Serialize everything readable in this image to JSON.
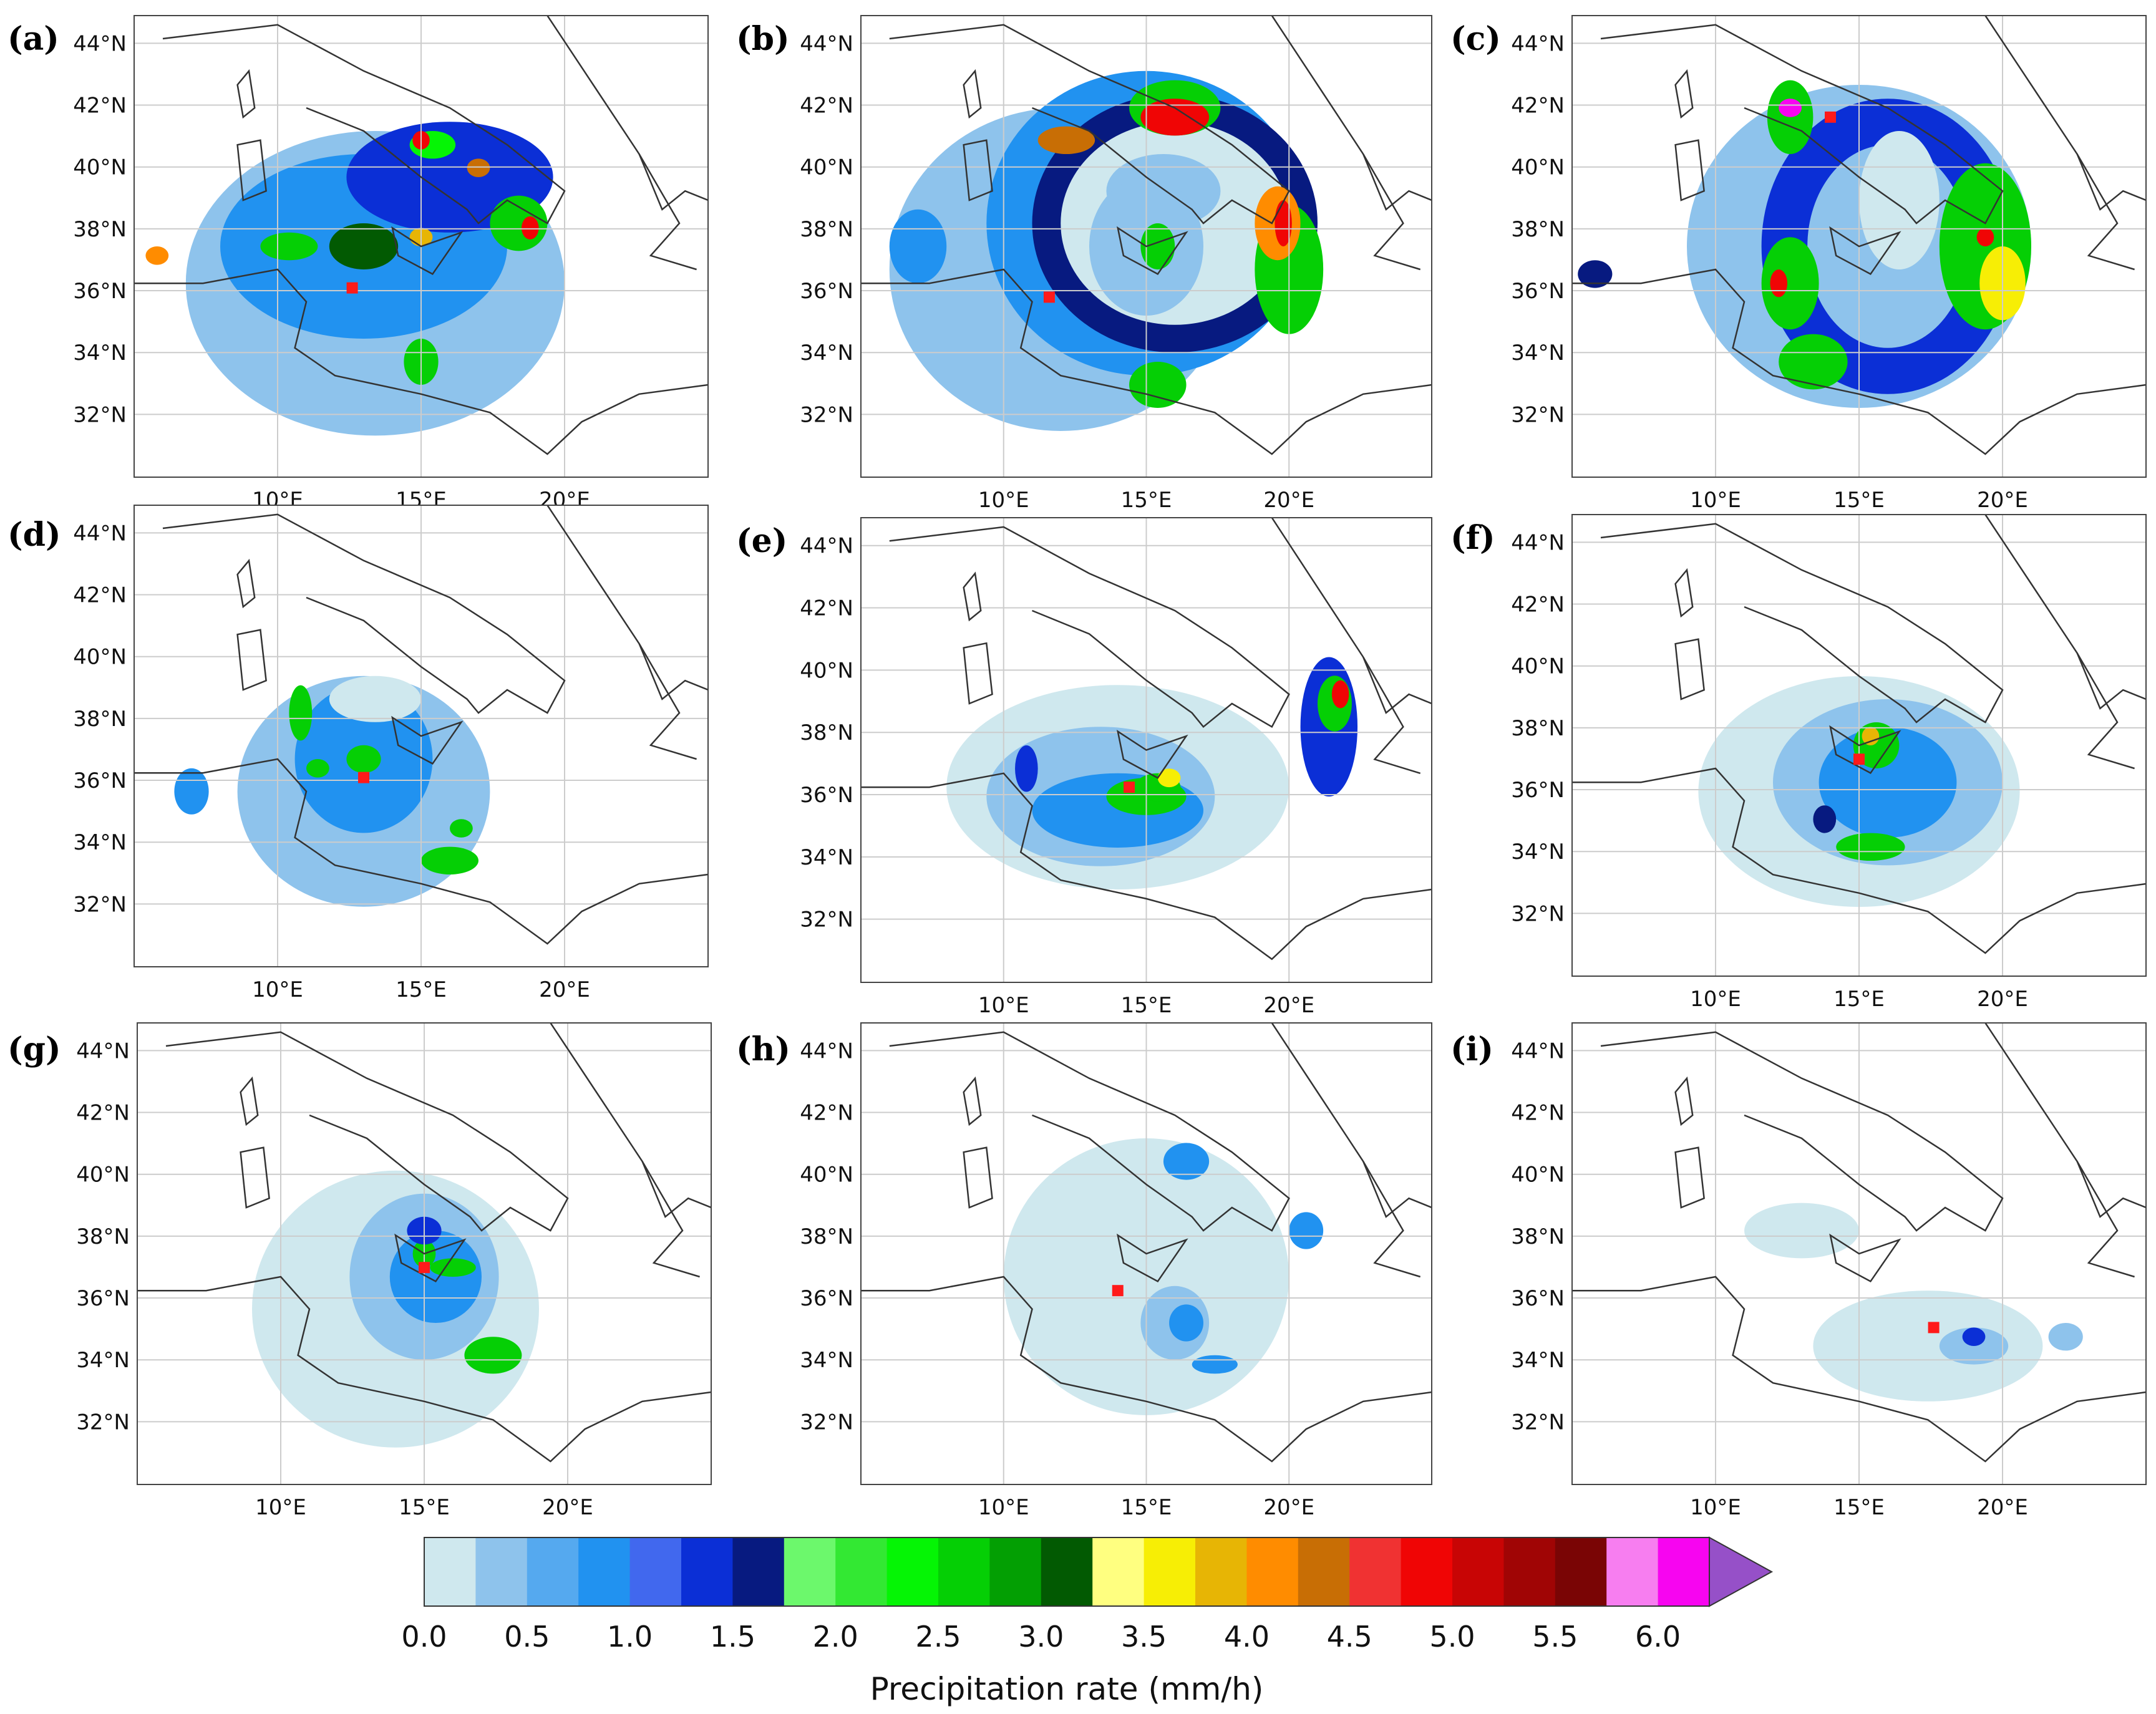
{
  "figure": {
    "panels": [
      {
        "letter": "(a)",
        "lat_labels": [
          "44°N",
          "42°N",
          "40°N",
          "38°N",
          "36°N",
          "34°N",
          "32°N"
        ],
        "lon_labels": [
          "10°E",
          "15°E",
          "20°E"
        ],
        "has_center_marker": true
      },
      {
        "letter": "(b)",
        "lat_labels": [
          "44°N",
          "42°N",
          "40°N",
          "38°N",
          "36°N",
          "34°N",
          "32°N"
        ],
        "lon_labels": [
          "10°E",
          "15°E",
          "20°E"
        ],
        "has_center_marker": true
      },
      {
        "letter": "(c)",
        "lat_labels": [
          "44°N",
          "42°N",
          "40°N",
          "38°N",
          "36°N",
          "34°N",
          "32°N"
        ],
        "lon_labels": [
          "10°E",
          "15°E",
          "20°E"
        ],
        "has_center_marker": true
      },
      {
        "letter": "(d)",
        "lat_labels": [
          "44°N",
          "42°N",
          "40°N",
          "38°N",
          "36°N",
          "34°N",
          "32°N"
        ],
        "lon_labels": [
          "10°E",
          "15°E",
          "20°E"
        ],
        "has_center_marker": true
      },
      {
        "letter": "(e)",
        "lat_labels": [
          "44°N",
          "42°N",
          "40°N",
          "38°N",
          "36°N",
          "34°N",
          "32°N"
        ],
        "lon_labels": [
          "10°E",
          "15°E",
          "20°E"
        ],
        "has_center_marker": true
      },
      {
        "letter": "(f)",
        "lat_labels": [
          "44°N",
          "42°N",
          "40°N",
          "38°N",
          "36°N",
          "34°N",
          "32°N"
        ],
        "lon_labels": [
          "10°E",
          "15°E",
          "20°E"
        ],
        "has_center_marker": true
      },
      {
        "letter": "(g)",
        "lat_labels": [
          "44°N",
          "42°N",
          "40°N",
          "38°N",
          "36°N",
          "34°N",
          "32°N"
        ],
        "lon_labels": [
          "10°E",
          "15°E",
          "20°E"
        ],
        "has_center_marker": true
      },
      {
        "letter": "(h)",
        "lat_labels": [
          "44°N",
          "42°N",
          "40°N",
          "38°N",
          "36°N",
          "34°N",
          "32°N"
        ],
        "lon_labels": [
          "10°E",
          "15°E",
          "20°E"
        ],
        "has_center_marker": true
      },
      {
        "letter": "(i)",
        "lat_labels": [
          "44°N",
          "42°N",
          "40°N",
          "38°N",
          "36°N",
          "34°N",
          "32°N"
        ],
        "lon_labels": [
          "10°E",
          "15°E",
          "20°E"
        ],
        "has_center_marker": true
      }
    ],
    "marker_color": "#ff1a1a",
    "coastline_color": "#333333",
    "grid_color": "#cccccc"
  },
  "colorbar": {
    "title": "Precipitation rate (mm/h)",
    "tick_labels": [
      "0.0",
      "0.5",
      "1.0",
      "1.5",
      "2.0",
      "2.5",
      "3.0",
      "3.5",
      "4.0",
      "4.5",
      "5.0",
      "5.5",
      "6.0"
    ],
    "colors": [
      "#cfe8ee",
      "#8ec3ec",
      "#55a9ef",
      "#2192f0",
      "#4168ee",
      "#0b2fd6",
      "#071a80",
      "#6cf86c",
      "#33e833",
      "#05f505",
      "#05cf05",
      "#039f03",
      "#025a02",
      "#ffff80",
      "#f7ee05",
      "#e7b505",
      "#ff8c00",
      "#c86e05",
      "#f03232",
      "#f00505",
      "#c80505",
      "#a00505",
      "#7a0505",
      "#f77ef0",
      "#f705f0"
    ],
    "extend_color": "#9650c8"
  }
}
